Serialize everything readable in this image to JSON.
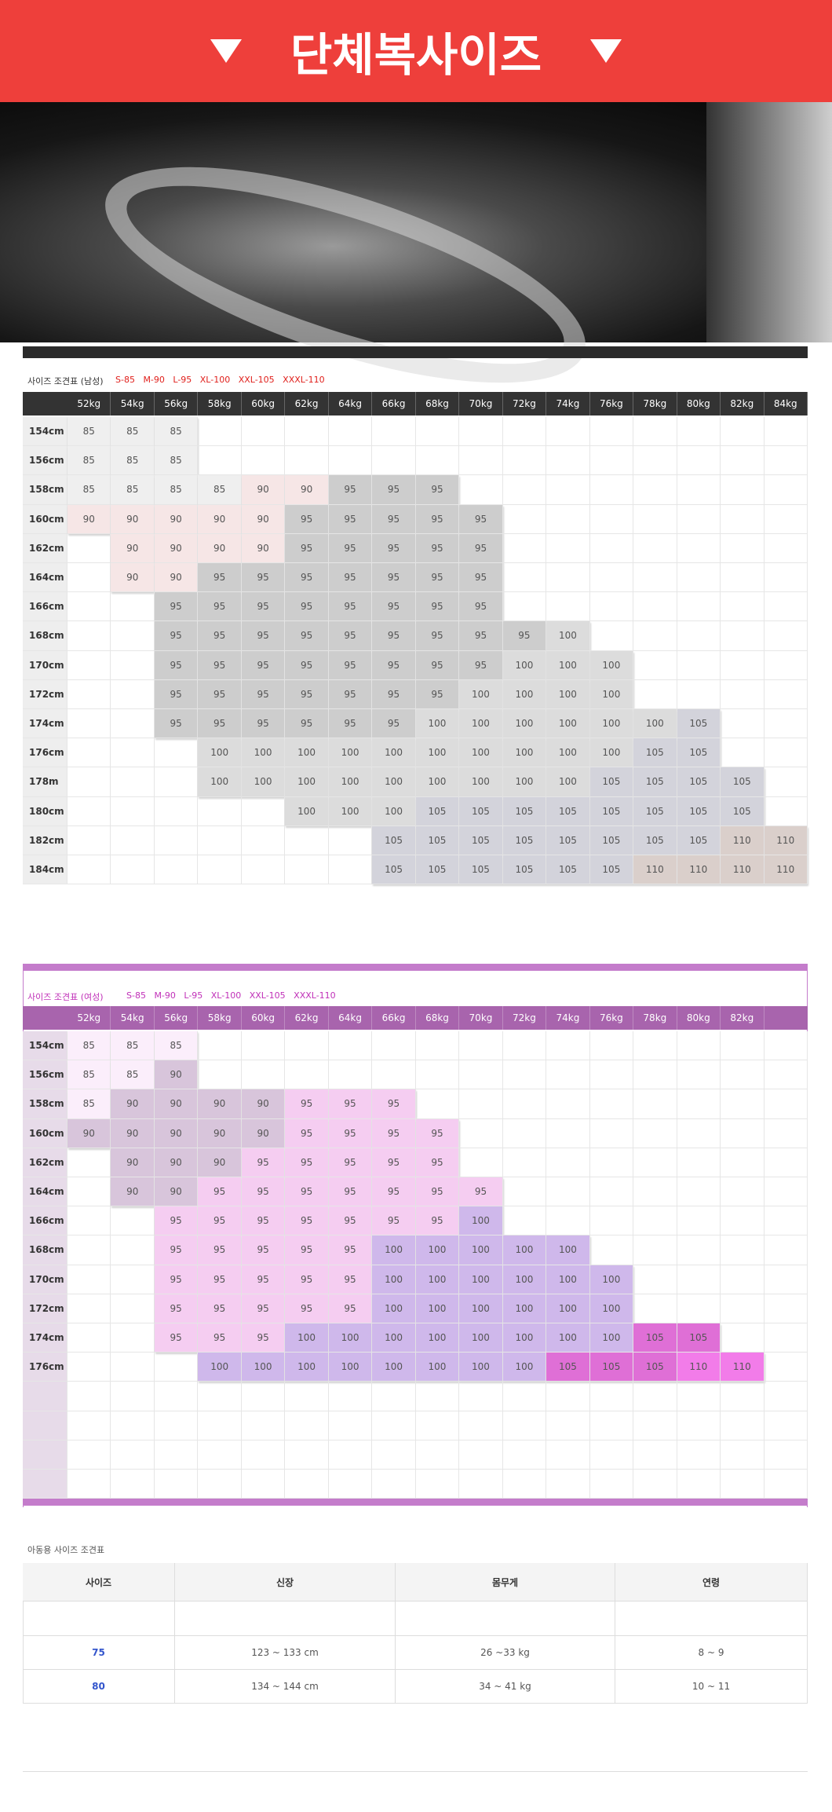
{
  "header": {
    "title": "단체복사이즈"
  },
  "men_table": {
    "caption": "사이즈 조견표 (남성)",
    "size_legend": "S-85   M-90   L-95   XL-100   XXL-105   XXXL-110",
    "columns": [
      "52kg",
      "54kg",
      "56kg",
      "58kg",
      "60kg",
      "62kg",
      "64kg",
      "66kg",
      "68kg",
      "70kg",
      "72kg",
      "74kg",
      "76kg",
      "78kg",
      "80kg",
      "82kg",
      "84kg"
    ],
    "colors": {
      "85": "#efefef",
      "90": "#f6e6e6",
      "95": "#cdcdcd",
      "100": "#dcdcdc",
      "105": "#d3d3db",
      "110": "#dacfcb"
    },
    "rows": [
      {
        "height": "154cm",
        "values": [
          85,
          85,
          85
        ]
      },
      {
        "height": "156cm",
        "values": [
          85,
          85,
          85
        ]
      },
      {
        "height": "158cm",
        "values": [
          85,
          85,
          85,
          85,
          90,
          90,
          95,
          95,
          95
        ]
      },
      {
        "height": "160cm",
        "values": [
          90,
          90,
          90,
          90,
          90,
          95,
          95,
          95,
          95,
          95
        ]
      },
      {
        "height": "162cm",
        "values": [
          null,
          90,
          90,
          90,
          90,
          95,
          95,
          95,
          95,
          95
        ]
      },
      {
        "height": "164cm",
        "values": [
          null,
          90,
          90,
          95,
          95,
          95,
          95,
          95,
          95,
          95
        ]
      },
      {
        "height": "166cm",
        "values": [
          null,
          null,
          95,
          95,
          95,
          95,
          95,
          95,
          95,
          95
        ]
      },
      {
        "height": "168cm",
        "values": [
          null,
          null,
          95,
          95,
          95,
          95,
          95,
          95,
          95,
          95,
          95,
          100
        ]
      },
      {
        "height": "170cm",
        "values": [
          null,
          null,
          95,
          95,
          95,
          95,
          95,
          95,
          95,
          95,
          100,
          100,
          100
        ]
      },
      {
        "height": "172cm",
        "values": [
          null,
          null,
          95,
          95,
          95,
          95,
          95,
          95,
          95,
          100,
          100,
          100,
          100
        ]
      },
      {
        "height": "174cm",
        "values": [
          null,
          null,
          95,
          95,
          95,
          95,
          95,
          95,
          100,
          100,
          100,
          100,
          100,
          100,
          105
        ]
      },
      {
        "height": "176cm",
        "values": [
          null,
          null,
          null,
          100,
          100,
          100,
          100,
          100,
          100,
          100,
          100,
          100,
          100,
          105,
          105
        ]
      },
      {
        "height": "178m",
        "values": [
          null,
          null,
          null,
          100,
          100,
          100,
          100,
          100,
          100,
          100,
          100,
          100,
          105,
          105,
          105,
          105
        ]
      },
      {
        "height": "180cm",
        "values": [
          null,
          null,
          null,
          null,
          null,
          100,
          100,
          100,
          105,
          105,
          105,
          105,
          105,
          105,
          105,
          105
        ]
      },
      {
        "height": "182cm",
        "values": [
          null,
          null,
          null,
          null,
          null,
          null,
          null,
          105,
          105,
          105,
          105,
          105,
          105,
          105,
          105,
          110,
          110
        ]
      },
      {
        "height": "184cm",
        "values": [
          null,
          null,
          null,
          null,
          null,
          null,
          null,
          105,
          105,
          105,
          105,
          105,
          105,
          110,
          110,
          110,
          110
        ]
      }
    ]
  },
  "women_table": {
    "caption": "사이즈 조견표 (여성)",
    "size_legend": "S-85   M-90   L-95   XL-100   XXL-105   XXXL-110",
    "columns": [
      "52kg",
      "54kg",
      "56kg",
      "58kg",
      "60kg",
      "62kg",
      "64kg",
      "66kg",
      "68kg",
      "70kg",
      "72kg",
      "74kg",
      "76kg",
      "78kg",
      "80kg",
      "82kg"
    ],
    "colors": {
      "85": "#fbeefb",
      "90": "#d8c5db",
      "95": "#f5cdf1",
      "100": "#cfb8eb",
      "105": "#df6fd6",
      "110": "#f27ce9"
    },
    "rows": [
      {
        "height": "154cm",
        "values": [
          85,
          85,
          85
        ]
      },
      {
        "height": "156cm",
        "values": [
          85,
          85,
          90
        ]
      },
      {
        "height": "158cm",
        "values": [
          85,
          90,
          90,
          90,
          90,
          95,
          95,
          95
        ]
      },
      {
        "height": "160cm",
        "values": [
          90,
          90,
          90,
          90,
          90,
          95,
          95,
          95,
          95
        ]
      },
      {
        "height": "162cm",
        "values": [
          null,
          90,
          90,
          90,
          95,
          95,
          95,
          95,
          95
        ]
      },
      {
        "height": "164cm",
        "values": [
          null,
          90,
          90,
          95,
          95,
          95,
          95,
          95,
          95,
          95
        ]
      },
      {
        "height": "166cm",
        "values": [
          null,
          null,
          95,
          95,
          95,
          95,
          95,
          95,
          95,
          100
        ]
      },
      {
        "height": "168cm",
        "values": [
          null,
          null,
          95,
          95,
          95,
          95,
          95,
          100,
          100,
          100,
          100,
          100
        ]
      },
      {
        "height": "170cm",
        "values": [
          null,
          null,
          95,
          95,
          95,
          95,
          95,
          100,
          100,
          100,
          100,
          100,
          100
        ]
      },
      {
        "height": "172cm",
        "values": [
          null,
          null,
          95,
          95,
          95,
          95,
          95,
          100,
          100,
          100,
          100,
          100,
          100
        ]
      },
      {
        "height": "174cm",
        "values": [
          null,
          null,
          95,
          95,
          95,
          100,
          100,
          100,
          100,
          100,
          100,
          100,
          100,
          105,
          105
        ]
      },
      {
        "height": "176cm",
        "values": [
          null,
          null,
          null,
          100,
          100,
          100,
          100,
          100,
          100,
          100,
          100,
          105,
          105,
          105,
          110,
          110
        ]
      }
    ]
  },
  "kids_table": {
    "caption": "아동용 사이즈 조견표",
    "headers": [
      "사이즈",
      "신장",
      "몸무게",
      "연령"
    ],
    "rows": [
      [
        "75",
        "123 ~ 133 cm",
        "26 ~33 kg",
        "8 ~ 9"
      ],
      [
        "80",
        "134 ~ 144 cm",
        "34 ~ 41 kg",
        "10 ~ 11"
      ]
    ]
  }
}
